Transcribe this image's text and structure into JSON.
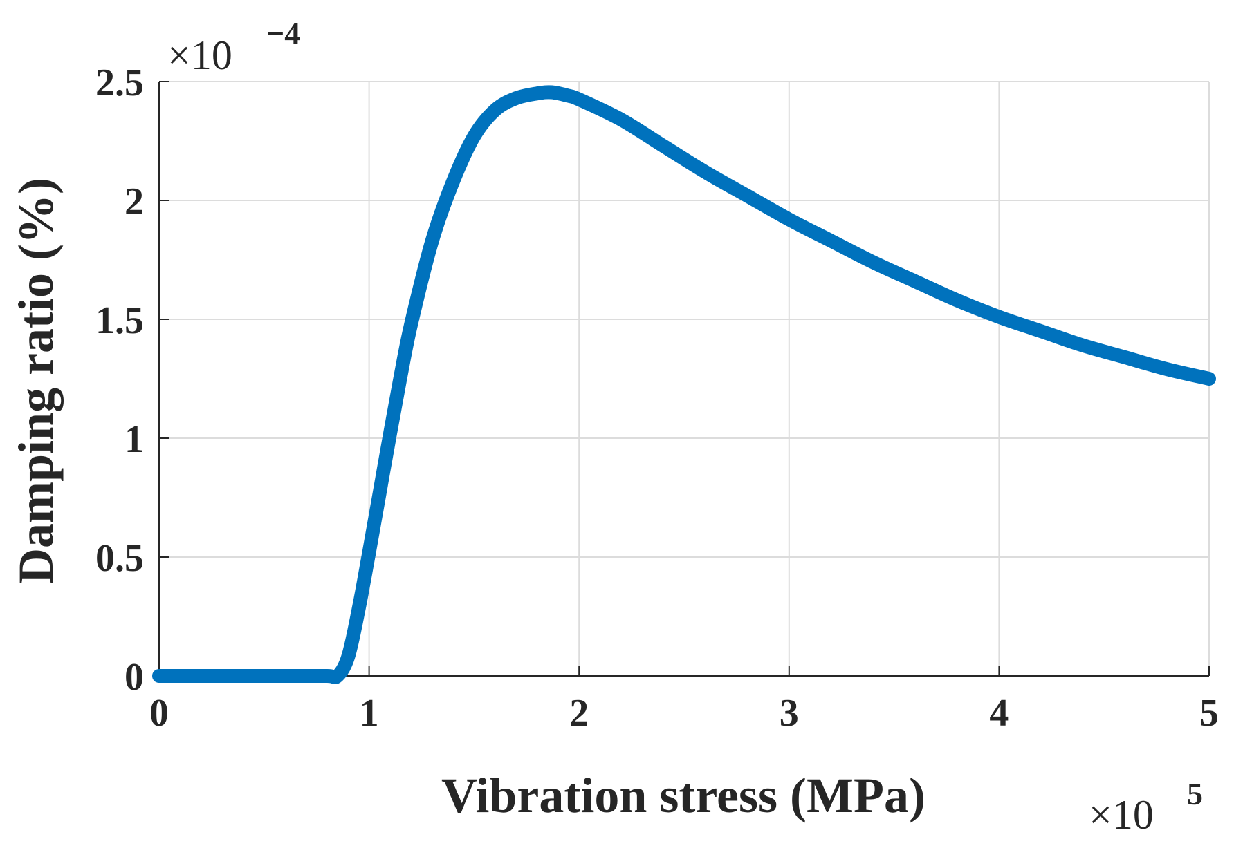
{
  "chart_data": {
    "type": "line",
    "title": "",
    "xlabel": "Vibration stress (MPa)",
    "ylabel": "Damping ratio (%)",
    "x_multiplier": {
      "base": "×10",
      "exponent": "5"
    },
    "y_multiplier": {
      "base": "×10",
      "exponent": "−4"
    },
    "xlim": [
      0,
      5
    ],
    "ylim": [
      0,
      2.5
    ],
    "x_ticks": [
      0,
      1,
      2,
      3,
      4,
      5
    ],
    "x_tick_labels": [
      "0",
      "1",
      "2",
      "3",
      "4",
      "5"
    ],
    "y_ticks": [
      0,
      0.5,
      1,
      1.5,
      2,
      2.5
    ],
    "y_tick_labels": [
      "0",
      "0.5",
      "1",
      "1.5",
      "2",
      "2.5"
    ],
    "grid": true,
    "series": [
      {
        "name": "Damping ratio",
        "color": "#0072BD",
        "x": [
          0,
          0.2,
          0.4,
          0.6,
          0.8,
          0.85,
          0.9,
          0.95,
          1.0,
          1.05,
          1.1,
          1.15,
          1.2,
          1.3,
          1.4,
          1.5,
          1.6,
          1.7,
          1.8,
          1.87,
          1.95,
          2.0,
          2.2,
          2.4,
          2.6,
          2.8,
          3.0,
          3.2,
          3.4,
          3.6,
          3.8,
          4.0,
          4.2,
          4.4,
          4.6,
          4.8,
          5.0
        ],
        "values": [
          0,
          0,
          0,
          0,
          0,
          0.0,
          0.08,
          0.28,
          0.52,
          0.77,
          1.02,
          1.26,
          1.48,
          1.83,
          2.08,
          2.27,
          2.38,
          2.43,
          2.45,
          2.455,
          2.44,
          2.425,
          2.34,
          2.23,
          2.12,
          2.02,
          1.92,
          1.83,
          1.74,
          1.66,
          1.58,
          1.51,
          1.45,
          1.39,
          1.34,
          1.29,
          1.25
        ]
      }
    ]
  }
}
